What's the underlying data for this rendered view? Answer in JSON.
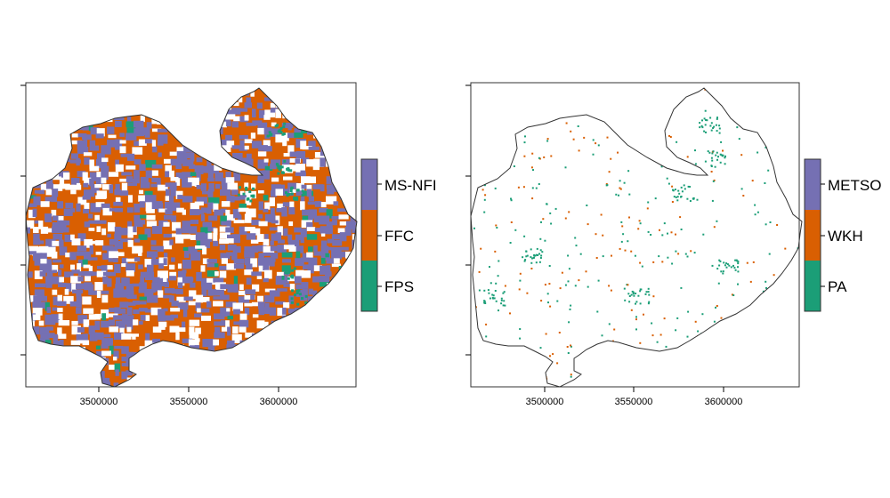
{
  "panels": [
    {
      "id": "left",
      "x_ticks": [
        "3500000",
        "3550000",
        "3600000"
      ],
      "legend": [
        {
          "label": "MS-NFI",
          "color": "#7570b3"
        },
        {
          "label": "FFC",
          "color": "#d95f02"
        },
        {
          "label": "FPS",
          "color": "#1b9e77"
        }
      ]
    },
    {
      "id": "right",
      "x_ticks": [
        "3500000",
        "3550000",
        "3600000"
      ],
      "legend": [
        {
          "label": "METSO",
          "color": "#7570b3"
        },
        {
          "label": "WKH",
          "color": "#d95f02"
        },
        {
          "label": "PA",
          "color": "#1b9e77"
        }
      ]
    }
  ],
  "colors": {
    "purple": "#7570b3",
    "orange": "#d95f02",
    "green": "#1b9e77",
    "outline": "#333333",
    "background": "#ffffff"
  }
}
